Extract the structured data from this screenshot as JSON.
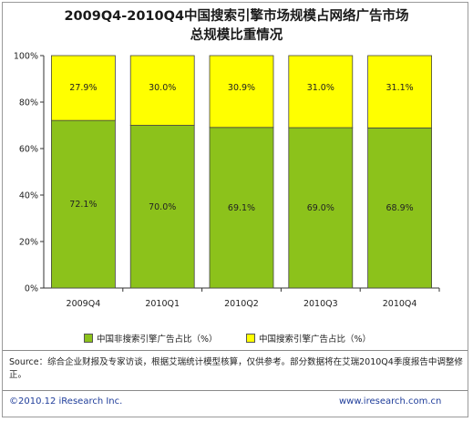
{
  "title_line1": "2009Q4-2010Q4中国搜索引擎市场规模占网络广告市场",
  "title_line2": "总规模比重情况",
  "chart_data": {
    "type": "bar",
    "stacked": true,
    "percent": true,
    "categories": [
      "2009Q4",
      "2010Q1",
      "2010Q2",
      "2010Q3",
      "2010Q4"
    ],
    "series": [
      {
        "name": "中国非搜索引擎广告占比（%）",
        "color": "#8cc21b",
        "values": [
          72.1,
          70.0,
          69.1,
          69.0,
          68.9
        ],
        "labels": [
          "72.1%",
          "70.0%",
          "69.1%",
          "69.0%",
          "68.9%"
        ]
      },
      {
        "name": "中国搜索引擎广告占比（%）",
        "color": "#ffff00",
        "values": [
          27.9,
          30.0,
          30.9,
          31.0,
          31.1
        ],
        "labels": [
          "27.9%",
          "30.0%",
          "30.9%",
          "31.0%",
          "31.1%"
        ]
      }
    ],
    "ylim": [
      0,
      100
    ],
    "yticks": [
      "0%",
      "20%",
      "40%",
      "60%",
      "80%",
      "100%"
    ],
    "grid": false,
    "legend": "bottom"
  },
  "source_text": "Source：综合企业财报及专家访谈，根据艾瑞统计模型核算，仅供参考。部分数据将在艾瑞2010Q4季度报告中调整修正。",
  "copyright": "©2010.12 iResearch Inc.",
  "website": "www.iresearch.com.cn"
}
